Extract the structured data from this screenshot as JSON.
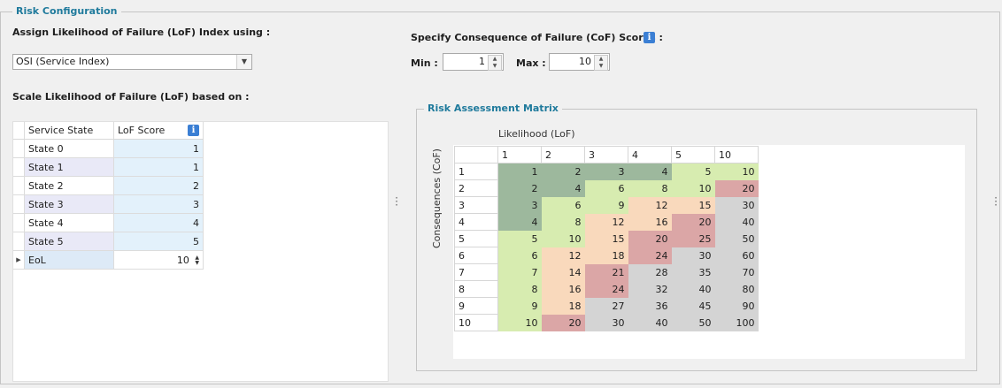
{
  "risk_config": {
    "title": "Risk Configuration",
    "assign_label": "Assign Likelihood of Failure (LoF) Index using :",
    "assign_value": "OSI (Service Index)",
    "scale_label": "Scale Likelihood of Failure (LoF) based on :",
    "grid": {
      "col_state": "Service State",
      "col_score": "LoF Score",
      "rows": [
        {
          "state": "State 0",
          "score": "1"
        },
        {
          "state": "State 1",
          "score": "1"
        },
        {
          "state": "State 2",
          "score": "2"
        },
        {
          "state": "State 3",
          "score": "3"
        },
        {
          "state": "State 4",
          "score": "4"
        },
        {
          "state": "State 5",
          "score": "5"
        },
        {
          "state": "EoL",
          "score": "10"
        }
      ]
    }
  },
  "cof": {
    "label": "Specify Consequence of Failure (CoF) Scores :",
    "min_label": "Min :",
    "min_value": "1",
    "max_label": "Max :",
    "max_value": "10"
  },
  "matrix": {
    "title": "Risk Assessment Matrix",
    "x_label": "Likelihood (LoF)",
    "y_label": "Consequences (CoF)",
    "col_headers": [
      "1",
      "2",
      "3",
      "4",
      "5",
      "10"
    ],
    "rows": [
      {
        "label": "1",
        "cells": [
          "1",
          "2",
          "3",
          "4",
          "5",
          "10"
        ]
      },
      {
        "label": "2",
        "cells": [
          "2",
          "4",
          "6",
          "8",
          "10",
          "20"
        ]
      },
      {
        "label": "3",
        "cells": [
          "3",
          "6",
          "9",
          "12",
          "15",
          "30"
        ]
      },
      {
        "label": "4",
        "cells": [
          "4",
          "8",
          "12",
          "16",
          "20",
          "40"
        ]
      },
      {
        "label": "5",
        "cells": [
          "5",
          "10",
          "15",
          "20",
          "25",
          "50"
        ]
      },
      {
        "label": "6",
        "cells": [
          "6",
          "12",
          "18",
          "24",
          "30",
          "60"
        ]
      },
      {
        "label": "7",
        "cells": [
          "7",
          "14",
          "21",
          "28",
          "35",
          "70"
        ]
      },
      {
        "label": "8",
        "cells": [
          "8",
          "16",
          "24",
          "32",
          "40",
          "80"
        ]
      },
      {
        "label": "9",
        "cells": [
          "9",
          "18",
          "27",
          "36",
          "45",
          "90"
        ]
      },
      {
        "label": "10",
        "cells": [
          "10",
          "20",
          "30",
          "40",
          "50",
          "100"
        ]
      }
    ],
    "colors": {
      "green": "#9db89d",
      "light_green": "#d7ecb0",
      "peach": "#f9d9bc",
      "red": "#dba6a6",
      "grey": "#d4d4d4"
    },
    "cell_classes": [
      [
        "g",
        "g",
        "g",
        "g",
        "l",
        "l"
      ],
      [
        "g",
        "g",
        "l",
        "l",
        "l",
        "r"
      ],
      [
        "g",
        "l",
        "l",
        "p",
        "p",
        "x"
      ],
      [
        "g",
        "l",
        "p",
        "p",
        "r",
        "x"
      ],
      [
        "l",
        "l",
        "p",
        "r",
        "r",
        "x"
      ],
      [
        "l",
        "p",
        "p",
        "r",
        "x",
        "x"
      ],
      [
        "l",
        "p",
        "r",
        "x",
        "x",
        "x"
      ],
      [
        "l",
        "p",
        "r",
        "x",
        "x",
        "x"
      ],
      [
        "l",
        "p",
        "x",
        "x",
        "x",
        "x"
      ],
      [
        "l",
        "r",
        "x",
        "x",
        "x",
        "x"
      ]
    ]
  },
  "icons": {
    "info": "info-icon",
    "dropdown": "chevron-down-icon",
    "splitter": "vertical-dots-icon",
    "row_indicator": "triangle-right-icon",
    "spinner": "up-down-arrows-icon"
  }
}
